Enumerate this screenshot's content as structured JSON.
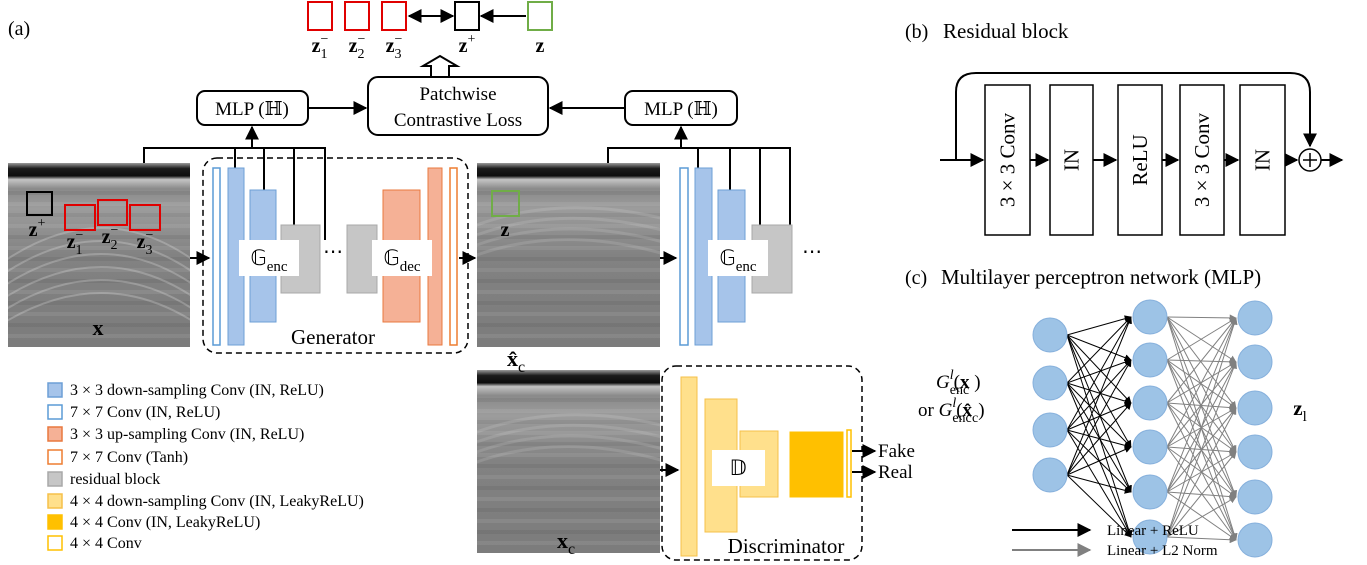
{
  "panel_a": {
    "label": "(a)",
    "top_patches": [
      {
        "base": "z",
        "sub": "1",
        "sup": "−"
      },
      {
        "base": "z",
        "sub": "2",
        "sup": "−"
      },
      {
        "base": "z",
        "sub": "3",
        "sup": "−"
      },
      {
        "base": "z",
        "sup": "+"
      },
      {
        "base": "z"
      }
    ],
    "mlp_left": "MLP (ℍ)",
    "mlp_right": "MLP (ℍ)",
    "loss": [
      "Patchwise",
      "Contrastive Loss"
    ],
    "input_image": {
      "label": "x",
      "patches": [
        {
          "base": "z",
          "sup": "+"
        },
        {
          "base": "z",
          "sub": "1",
          "sup": "−"
        },
        {
          "base": "z",
          "sub": "2",
          "sup": "−"
        },
        {
          "base": "z",
          "sub": "3",
          "sup": "−"
        }
      ]
    },
    "generator": {
      "title": "Generator",
      "encoder": {
        "base": "𝔾",
        "sub": "enc"
      },
      "decoder": {
        "base": "𝔾",
        "sub": "dec"
      },
      "ellipsis": "⋯"
    },
    "output_image": {
      "label": {
        "base": "x̂",
        "sub": "c"
      },
      "patch": {
        "base": "z"
      }
    },
    "next_encoder": {
      "label": {
        "base": "𝔾",
        "sub": "enc"
      },
      "ellipsis": "⋯"
    },
    "clean_image": {
      "label": {
        "base": "x",
        "sub": "c"
      }
    },
    "discriminator": {
      "title": "Discriminator",
      "label": "𝔻",
      "outputs": [
        "Fake",
        "Real"
      ]
    },
    "legend": [
      "3 × 3 down-sampling Conv (IN, ReLU)",
      "7 × 7 Conv (IN, ReLU)",
      "3 × 3 up-sampling Conv (IN, ReLU)",
      "7 × 7 Conv (Tanh)",
      "residual block",
      "4 × 4 down-sampling Conv (IN, LeakyReLU)",
      "4 × 4 Conv (IN, LeakyReLU)",
      "4 × 4 Conv"
    ]
  },
  "panel_b": {
    "label": "(b)",
    "title": "Residual block",
    "blocks": [
      "3 × 3 Conv",
      "IN",
      "ReLU",
      "3 × 3 Conv",
      "IN"
    ]
  },
  "panel_c": {
    "label": "(c)",
    "title": "Multilayer perceptron network (MLP)",
    "inputs": [
      [
        {
          "base": "G",
          "sub": "enc",
          "sup": "l"
        },
        {
          "base": "("
        },
        {
          "base": "x"
        },
        {
          "base": " )"
        }
      ],
      [
        {
          "base": "or "
        },
        {
          "base": "G",
          "sub": "enc",
          "sup": "l"
        },
        {
          "base": "("
        },
        {
          "base": "x̂",
          "sub": "c"
        },
        {
          "base": ")"
        }
      ]
    ],
    "output": {
      "base": "z",
      "sub": "l"
    },
    "legend": [
      "Linear + ReLU",
      "Linear + L2 Norm"
    ]
  }
}
